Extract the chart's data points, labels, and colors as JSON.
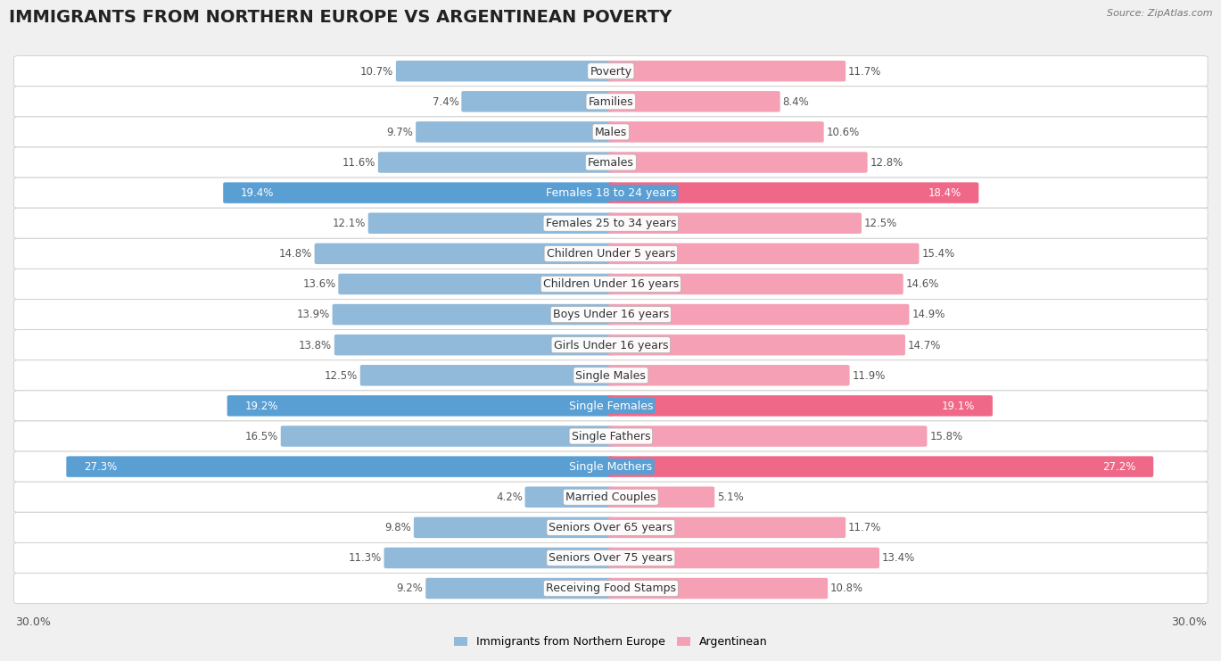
{
  "title": "IMMIGRANTS FROM NORTHERN EUROPE VS ARGENTINEAN POVERTY",
  "source": "Source: ZipAtlas.com",
  "categories": [
    "Poverty",
    "Families",
    "Males",
    "Females",
    "Females 18 to 24 years",
    "Females 25 to 34 years",
    "Children Under 5 years",
    "Children Under 16 years",
    "Boys Under 16 years",
    "Girls Under 16 years",
    "Single Males",
    "Single Females",
    "Single Fathers",
    "Single Mothers",
    "Married Couples",
    "Seniors Over 65 years",
    "Seniors Over 75 years",
    "Receiving Food Stamps"
  ],
  "left_values": [
    10.7,
    7.4,
    9.7,
    11.6,
    19.4,
    12.1,
    14.8,
    13.6,
    13.9,
    13.8,
    12.5,
    19.2,
    16.5,
    27.3,
    4.2,
    9.8,
    11.3,
    9.2
  ],
  "right_values": [
    11.7,
    8.4,
    10.6,
    12.8,
    18.4,
    12.5,
    15.4,
    14.6,
    14.9,
    14.7,
    11.9,
    19.1,
    15.8,
    27.2,
    5.1,
    11.7,
    13.4,
    10.8
  ],
  "left_color": "#91b9d9",
  "right_color": "#f5a0b5",
  "left_label": "Immigrants from Northern Europe",
  "right_label": "Argentinean",
  "highlight_left_color": "#5a9fd4",
  "highlight_right_color": "#f06888",
  "highlight_rows": [
    4,
    11,
    13
  ],
  "max_value": 30.0,
  "bg_color": "#f0f0f0",
  "title_fontsize": 14,
  "label_fontsize": 9,
  "value_fontsize": 8.5
}
